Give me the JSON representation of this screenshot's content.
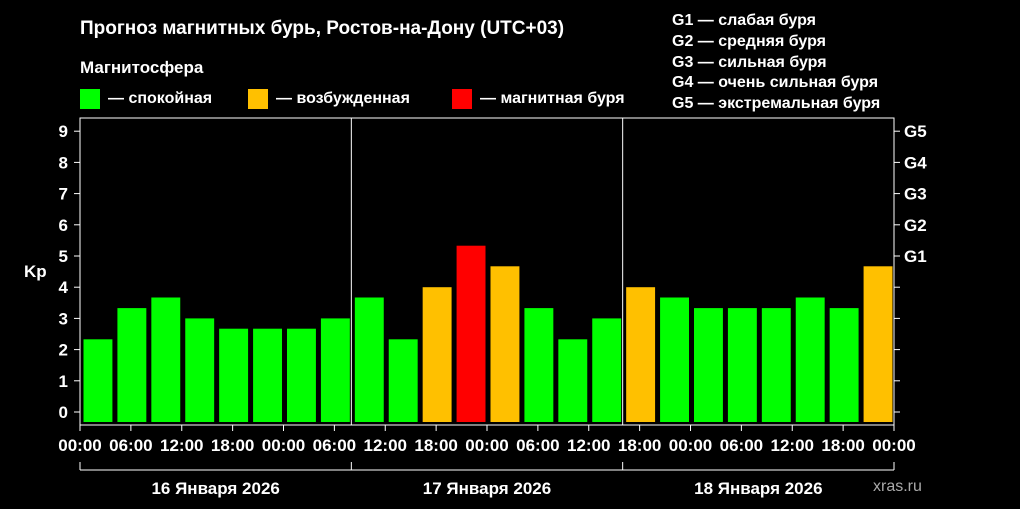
{
  "header": {
    "title": "Прогноз магнитных бурь, Ростов-на-Дону (UTC+03)",
    "section_label": "Магнитосфера"
  },
  "legend": [
    {
      "label": "— спокойная",
      "color": "#00ff00"
    },
    {
      "label": "— возбужденная",
      "color": "#ffc000"
    },
    {
      "label": "— магнитная буря",
      "color": "#ff0000"
    }
  ],
  "storm_scale": [
    "G1 — слабая буря",
    "G2 — средняя буря",
    "G3 — сильная буря",
    "G4 — очень сильная буря",
    "G5 — экстремальная буря"
  ],
  "watermark": "xras.ru",
  "chart_data": {
    "type": "bar",
    "ylabel": "Kp",
    "ylim": [
      0,
      9
    ],
    "yticks": [
      0,
      1,
      2,
      3,
      4,
      5,
      6,
      7,
      8,
      9
    ],
    "right_axis": [
      {
        "label": "G1",
        "kp": 5
      },
      {
        "label": "G2",
        "kp": 6
      },
      {
        "label": "G3",
        "kp": 7
      },
      {
        "label": "G4",
        "kp": 8
      },
      {
        "label": "G5",
        "kp": 9
      }
    ],
    "xtick_labels": [
      "00:00",
      "06:00",
      "12:00",
      "18:00",
      "00:00",
      "06:00",
      "12:00",
      "18:00",
      "00:00",
      "06:00",
      "12:00",
      "18:00",
      "00:00",
      "06:00",
      "12:00",
      "18:00",
      "00:00"
    ],
    "days": [
      "16 Января 2026",
      "17 Января 2026",
      "18 Января 2026"
    ],
    "grid": false,
    "colors": {
      "quiet": "#00ff00",
      "active": "#ffc000",
      "storm": "#ff0000"
    },
    "values": [
      2.33,
      3.33,
      3.67,
      3.0,
      2.67,
      2.67,
      2.67,
      3.0,
      3.67,
      2.33,
      4.0,
      5.33,
      4.67,
      3.33,
      2.33,
      3.0,
      4.0,
      3.67,
      3.33,
      3.33,
      3.33,
      3.67,
      3.33,
      4.67
    ],
    "levels": [
      "quiet",
      "quiet",
      "quiet",
      "quiet",
      "quiet",
      "quiet",
      "quiet",
      "quiet",
      "quiet",
      "quiet",
      "active",
      "storm",
      "active",
      "quiet",
      "quiet",
      "quiet",
      "active",
      "quiet",
      "quiet",
      "quiet",
      "quiet",
      "quiet",
      "quiet",
      "active"
    ]
  }
}
